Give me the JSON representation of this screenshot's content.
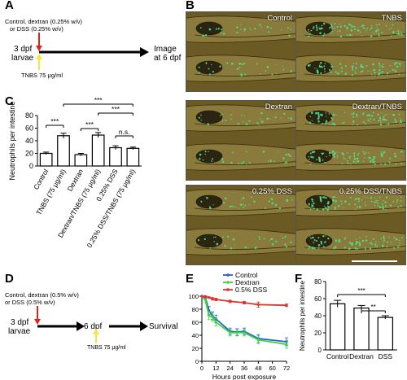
{
  "panels": {
    "A": {
      "letter": "A",
      "treatment_label_1": "Control, dextran (0.25% w/v)",
      "treatment_label_2": "or DSS (0.25% w/v)",
      "stage_1": "3 dpf",
      "stage_2": "larvae",
      "tnbs_label": "TNBS 75 μg/ml",
      "end_label_1": "Image",
      "end_label_2": "at 6 dpf"
    },
    "B": {
      "letter": "B",
      "images": [
        "Control",
        "TNBS",
        "Dextran",
        "Dextran/TNBS",
        "0.25% DSS",
        "0.25% DSS/TNBS"
      ]
    },
    "D": {
      "letter": "D",
      "treatment_label_1": "Control, dextran (0.5% w/v)",
      "treatment_label_2": "or DSS (0.5% w/v)",
      "stage_1": "3 dpf",
      "stage_2": "larvae",
      "mid_label": "6 dpf",
      "tnbs_label": "TNBS 75 μg/ml",
      "end_label": "Survival"
    }
  },
  "colors": {
    "red_arrow": "#e0231b",
    "yellow_arrow": "#f2e93a",
    "control": "#2a5fd6",
    "dextran": "#3fd63a",
    "dss": "#e0302a",
    "fluorescence": "#4fe08a",
    "tissue": "#6b5a24"
  },
  "chart_data": [
    {
      "panel": "C",
      "type": "bar",
      "ylabel": "Neutrophils per intestine",
      "ylim": [
        0,
        80
      ],
      "yticks": [
        0,
        20,
        40,
        60,
        80
      ],
      "categories": [
        "Control",
        "TNBS (75 μg/ml)",
        "Dextran",
        "Dextran/TNBS (75 μg/ml)",
        "0.25% DSS",
        "0.25% DSS/TNBS (75 μg/ml)"
      ],
      "values": [
        20,
        48,
        18,
        49,
        29,
        28
      ],
      "errors": [
        2,
        4,
        2,
        4,
        3,
        2
      ],
      "significance": [
        {
          "from": 0,
          "to": 1,
          "label": "***"
        },
        {
          "from": 2,
          "to": 3,
          "label": "***"
        },
        {
          "from": 4,
          "to": 5,
          "label": "n.s."
        },
        {
          "from": 1,
          "to": 5,
          "label": "***"
        },
        {
          "from": 3,
          "to": 5,
          "label": "***"
        }
      ]
    },
    {
      "panel": "E",
      "type": "line",
      "xlabel": "Hours post exposure",
      "ylabel": "",
      "xlim": [
        0,
        72
      ],
      "ylim": [
        0,
        100
      ],
      "xticks": [
        0,
        12,
        24,
        36,
        48,
        60,
        72
      ],
      "yticks": [
        0,
        20,
        40,
        60,
        80,
        100
      ],
      "legend_position": "top-right",
      "series": [
        {
          "name": "Control",
          "color": "#2a5fd6",
          "x": [
            0,
            3,
            6,
            9,
            12,
            24,
            30,
            36,
            48,
            72
          ],
          "y": [
            100,
            98,
            78,
            70,
            65,
            46,
            45,
            46,
            35,
            30
          ],
          "err": [
            0,
            3,
            6,
            6,
            6,
            5,
            5,
            5,
            6,
            6
          ]
        },
        {
          "name": "Dextran",
          "color": "#3fd63a",
          "x": [
            0,
            3,
            6,
            9,
            12,
            24,
            30,
            36,
            48,
            72
          ],
          "y": [
            100,
            94,
            70,
            68,
            60,
            44,
            44,
            44,
            33,
            26
          ],
          "err": [
            0,
            4,
            6,
            6,
            6,
            5,
            5,
            5,
            6,
            6
          ]
        },
        {
          "name": "0.5% DSS",
          "color": "#e0302a",
          "x": [
            0,
            3,
            6,
            9,
            12,
            24,
            36,
            48,
            72
          ],
          "y": [
            100,
            99,
            98,
            96,
            95,
            92,
            90,
            87,
            86
          ],
          "err": [
            0,
            1,
            1,
            2,
            2,
            2,
            2,
            4,
            2
          ]
        }
      ]
    },
    {
      "panel": "F",
      "type": "bar",
      "ylabel": "Neutrophils per intestine",
      "ylim": [
        0,
        80
      ],
      "yticks": [
        0,
        20,
        40,
        60,
        80
      ],
      "categories": [
        "Control",
        "Dextran",
        "DSS"
      ],
      "values": [
        54,
        49,
        38
      ],
      "errors": [
        4,
        3,
        2
      ],
      "significance": [
        {
          "from": 0,
          "to": 2,
          "label": "***"
        },
        {
          "from": 1,
          "to": 2,
          "label": "**"
        }
      ]
    }
  ]
}
